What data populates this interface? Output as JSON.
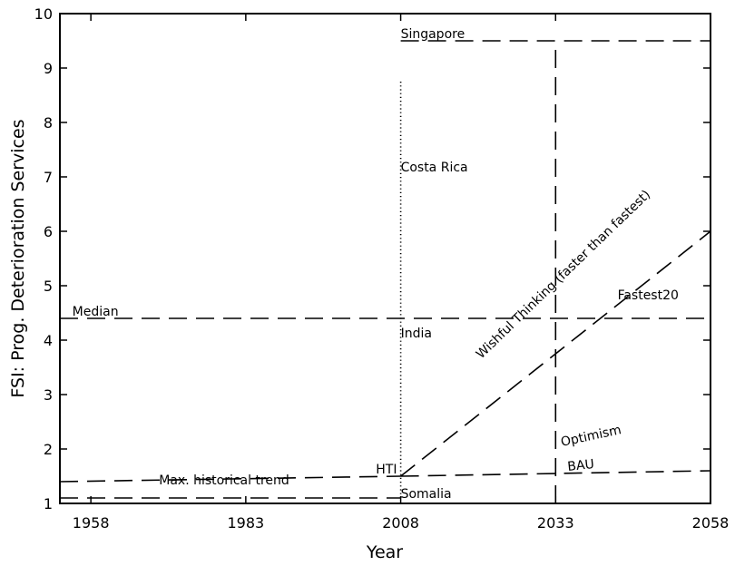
{
  "chart_data": {
    "type": "line",
    "title": "",
    "xlabel": "Year",
    "ylabel": "FSI: Prog. Deterioration Services",
    "xlim": [
      1953,
      2058
    ],
    "ylim": [
      1,
      10
    ],
    "x_ticks": [
      1958,
      1983,
      2008,
      2033,
      2058
    ],
    "y_ticks": [
      1,
      2,
      3,
      4,
      5,
      6,
      7,
      8,
      9,
      10
    ],
    "grid": false,
    "series": [
      {
        "style": "dashed",
        "points": [
          [
            1953,
            4.4
          ],
          [
            2058,
            4.4
          ]
        ]
      },
      {
        "style": "dashed",
        "points": [
          [
            2008,
            9.5
          ],
          [
            2058,
            9.5
          ]
        ]
      },
      {
        "style": "dashed",
        "points": [
          [
            2033,
            1
          ],
          [
            2033,
            9.5
          ]
        ]
      },
      {
        "style": "dashed",
        "points": [
          [
            1953,
            1.4
          ],
          [
            2008,
            1.5
          ]
        ]
      },
      {
        "style": "dashed",
        "points": [
          [
            1953,
            1.1
          ],
          [
            2008,
            1.1
          ]
        ]
      },
      {
        "style": "dashed",
        "points": [
          [
            2008,
            1.5
          ],
          [
            2058,
            1.6
          ]
        ]
      },
      {
        "style": "dashed",
        "points": [
          [
            2008,
            1.5
          ],
          [
            2058,
            6.0
          ]
        ]
      },
      {
        "style": "dotted",
        "points": [
          [
            2008,
            1.1
          ],
          [
            2008,
            8.8
          ]
        ]
      }
    ],
    "annotations": [
      {
        "text": "Singapore",
        "x": 2008,
        "y": 9.55
      },
      {
        "text": "Costa Rica",
        "x": 2008,
        "y": 7.1
      },
      {
        "text": "Median",
        "x": 1955,
        "y": 4.45
      },
      {
        "text": "India",
        "x": 2008,
        "y": 4.05
      },
      {
        "text": "Fastest20",
        "x": 2043,
        "y": 4.75
      },
      {
        "text": "HTI",
        "x": 2004,
        "y": 1.55
      },
      {
        "text": "Max. historical trend",
        "x": 1969,
        "y": 1.35
      },
      {
        "text": "Somalia",
        "x": 2008,
        "y": 1.1
      },
      {
        "text": "Optimism",
        "x": 2034,
        "y": 2.05
      },
      {
        "text": "BAU",
        "x": 2035,
        "y": 1.6
      },
      {
        "text": "Wishful Thinking (faster than fastest)",
        "x": 2021,
        "y": 3.65
      }
    ]
  }
}
